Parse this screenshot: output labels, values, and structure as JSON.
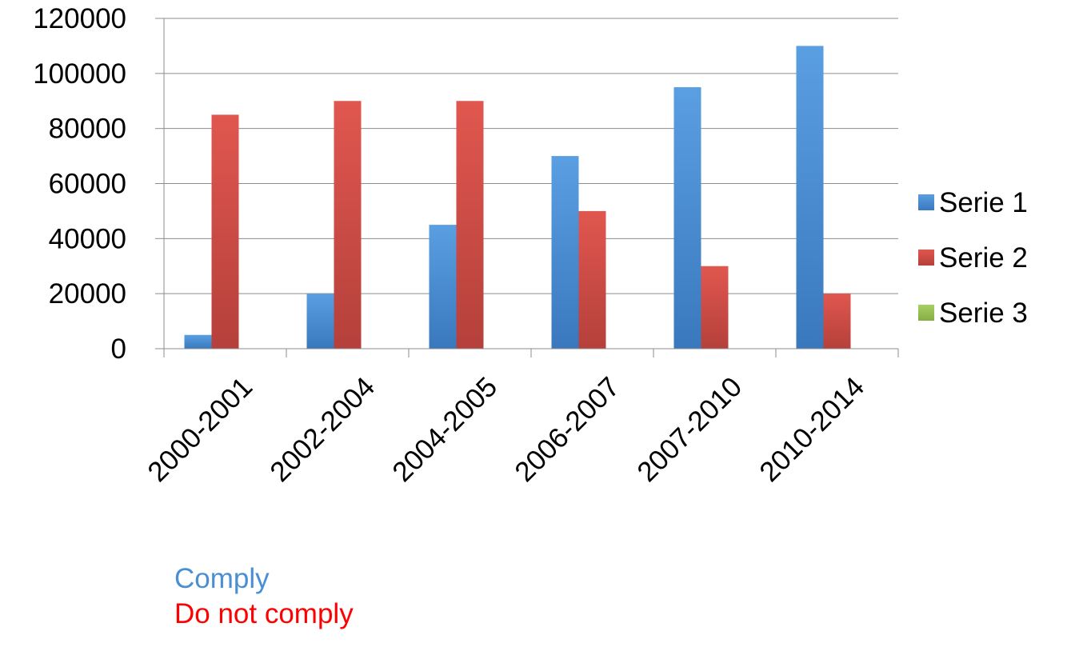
{
  "chart_data": {
    "type": "bar",
    "categories": [
      "2000-2001",
      "2002-2004",
      "2004-2005",
      "2006-2007",
      "2007-2010",
      "2010-2014"
    ],
    "series": [
      {
        "name": "Serie 1",
        "color": "#4a8fd4",
        "values": [
          5000,
          20000,
          45000,
          70000,
          95000,
          110000
        ]
      },
      {
        "name": "Serie 2",
        "color": "#d1504b",
        "values": [
          85000,
          90000,
          90000,
          50000,
          30000,
          20000
        ]
      },
      {
        "name": "Serie 3",
        "color": "#9bc455",
        "values": [
          0,
          0,
          0,
          0,
          0,
          0
        ]
      }
    ],
    "ylim": [
      0,
      120000
    ],
    "yticks": [
      0,
      20000,
      40000,
      60000,
      80000,
      100000,
      120000
    ],
    "grid": true,
    "legend_position": "right"
  },
  "notes": {
    "comply": {
      "text": "Comply",
      "color": "#4a8fd4"
    },
    "do_not_comply": {
      "text": "Do not comply",
      "color": "#ff0000"
    }
  }
}
